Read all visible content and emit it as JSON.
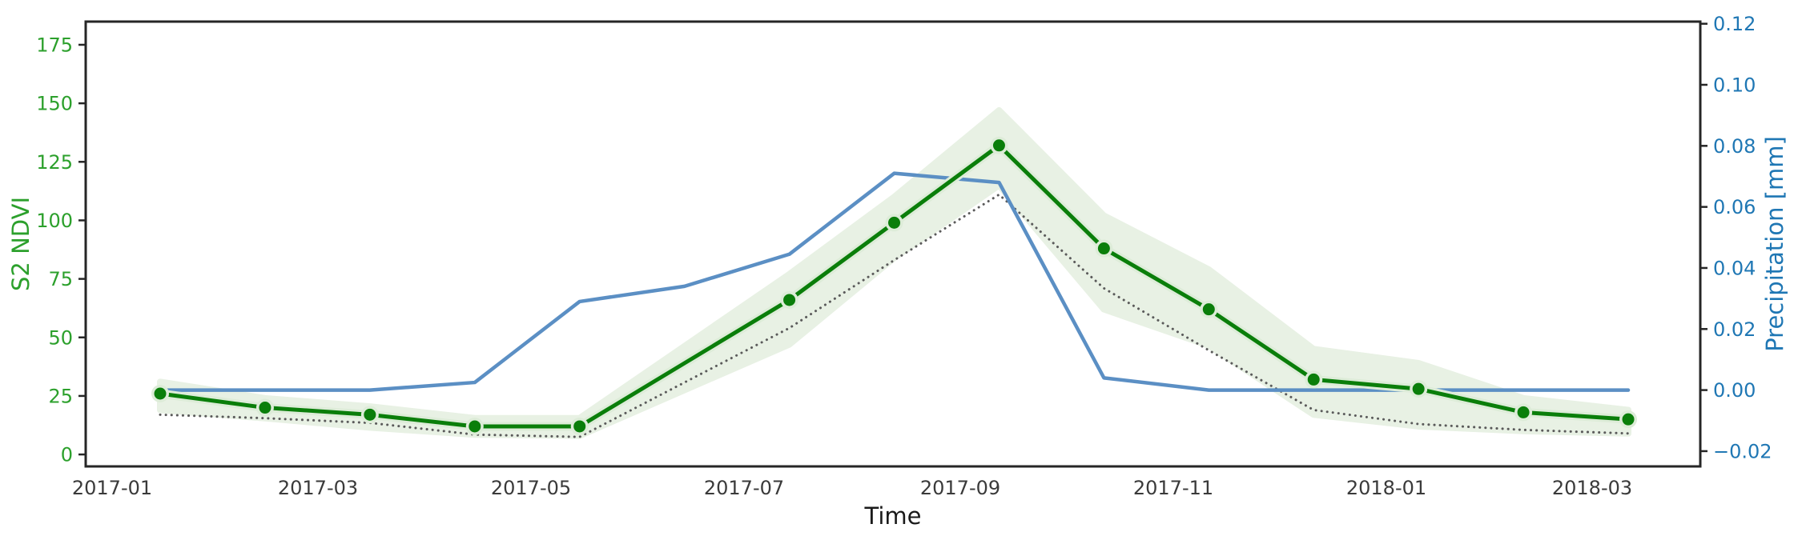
{
  "chart_data": {
    "type": "line",
    "title": "",
    "xlabel": "Time",
    "ylabel_left": "S2 NDVI",
    "ylabel_right": "Precipitation [mm]",
    "legend": "none",
    "grid": false,
    "x_tick_labels": [
      "2017-01",
      "2017-03",
      "2017-05",
      "2017-07",
      "2017-09",
      "2017-11",
      "2018-01",
      "2018-03"
    ],
    "y_left_tick_values": [
      0,
      25,
      50,
      75,
      100,
      125,
      150,
      175
    ],
    "y_left_tick_labels": [
      "0",
      "25",
      "50",
      "75",
      "100",
      "125",
      "150",
      "175"
    ],
    "y_right_tick_values": [
      -0.02,
      0.0,
      0.02,
      0.04,
      0.06,
      0.08,
      0.1,
      0.12
    ],
    "y_right_tick_labels": [
      "−0.02",
      "0.00",
      "0.02",
      "0.04",
      "0.06",
      "0.08",
      "0.10",
      "0.12"
    ],
    "ylim_left": [
      -5.1,
      184.9
    ],
    "ylim_right": [
      -0.025,
      0.1207
    ],
    "months": [
      "2017-01",
      "2017-02",
      "2017-03",
      "2017-04",
      "2017-05",
      "2017-06",
      "2017-07",
      "2017-08",
      "2017-09",
      "2017-10",
      "2017-11",
      "2017-12",
      "2018-01",
      "2018-02",
      "2018-03"
    ],
    "series": [
      {
        "name": "s2-ndvi-mean",
        "axis": "left",
        "style": "solid-with-markers",
        "color": "#0a7e0a",
        "halo_color": "#ddecd8",
        "values": [
          26,
          20,
          17,
          12,
          12,
          null,
          66,
          99,
          132,
          88,
          62,
          32,
          28,
          18,
          15
        ]
      },
      {
        "name": "ndvi-dotted-lower",
        "axis": "left",
        "style": "dotted",
        "color": "#5a5a5a",
        "values": [
          17,
          15.5,
          13.5,
          8.5,
          7.5,
          null,
          54,
          83,
          111,
          71,
          44.5,
          19,
          13,
          10.5,
          9
        ]
      },
      {
        "name": "precipitation",
        "axis": "right",
        "style": "solid",
        "color": "#5b8fc4",
        "values": [
          0.0,
          0.0,
          0.0,
          0.0025,
          0.029,
          0.034,
          0.0445,
          0.071,
          0.068,
          0.004,
          0.0,
          0.0,
          0.0,
          0.0,
          0.0
        ]
      }
    ],
    "band": {
      "name": "ndvi-uncertainty-band",
      "axis": "left",
      "color": "#e8f1e4",
      "upper": [
        31,
        24,
        20.5,
        15.5,
        15.5,
        null,
        77,
        110,
        147,
        102,
        79,
        45,
        39,
        24,
        19
      ],
      "lower": [
        19,
        15.5,
        11.5,
        8.5,
        8,
        null,
        47,
        84,
        115,
        62,
        46.5,
        17,
        12,
        10,
        9
      ]
    },
    "colors": {
      "left_axis": "#2ca02c",
      "right_axis": "#1f77b4",
      "spine": "#262626",
      "x_tick_text": "#3a3a3a"
    }
  }
}
